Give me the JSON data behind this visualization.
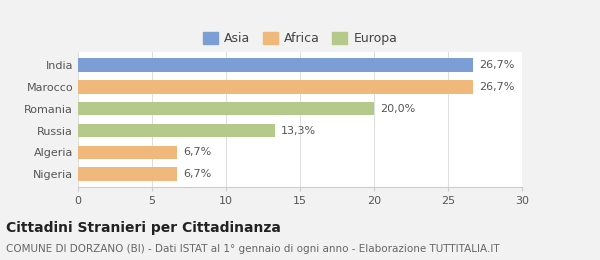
{
  "categories": [
    "Nigeria",
    "Algeria",
    "Russia",
    "Romania",
    "Marocco",
    "India"
  ],
  "values": [
    6.7,
    6.7,
    13.3,
    20.0,
    26.7,
    26.7
  ],
  "percentages": [
    "6,7%",
    "6,7%",
    "13,3%",
    "20,0%",
    "26,7%",
    "26,7%"
  ],
  "colors": [
    "#f0b87a",
    "#f0b87a",
    "#b5c98a",
    "#b5c98a",
    "#f0b87a",
    "#7b9fd4"
  ],
  "legend": [
    {
      "label": "Asia",
      "color": "#7b9fd4"
    },
    {
      "label": "Africa",
      "color": "#f0b87a"
    },
    {
      "label": "Europa",
      "color": "#b5c98a"
    }
  ],
  "xlim": [
    0,
    30
  ],
  "xticks": [
    0,
    5,
    10,
    15,
    20,
    25,
    30
  ],
  "title": "Cittadini Stranieri per Cittadinanza",
  "subtitle": "COMUNE DI DORZANO (BI) - Dati ISTAT al 1° gennaio di ogni anno - Elaborazione TUTTITALIA.IT",
  "background_color": "#f2f2f2",
  "bar_background": "#ffffff",
  "title_fontsize": 10,
  "subtitle_fontsize": 7.5,
  "label_fontsize": 8,
  "tick_fontsize": 8,
  "legend_fontsize": 9
}
